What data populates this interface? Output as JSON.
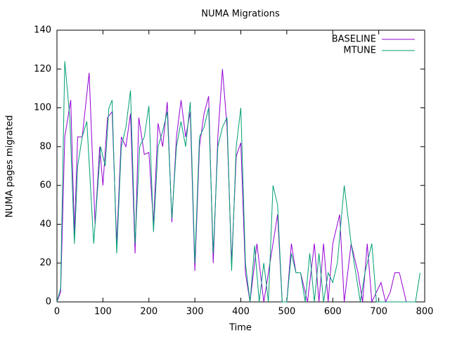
{
  "chart_data": {
    "type": "line",
    "title": "NUMA Migrations",
    "xlabel": "Time",
    "ylabel": "NUMA pages migrated",
    "xlim": [
      0,
      800
    ],
    "xticks": [
      0,
      100,
      200,
      300,
      400,
      500,
      600,
      700,
      800
    ],
    "ylim": [
      0,
      140
    ],
    "yticks": [
      0,
      20,
      40,
      60,
      80,
      100,
      120,
      140
    ],
    "legend": "upper right",
    "series": [
      {
        "name": "BASELINE",
        "color": "#9400d3",
        "x": [
          0,
          8,
          17,
          30,
          38,
          45,
          55,
          70,
          83,
          93,
          100,
          110,
          120,
          130,
          140,
          150,
          160,
          170,
          178,
          190,
          200,
          210,
          220,
          230,
          240,
          250,
          260,
          270,
          280,
          290,
          300,
          310,
          320,
          330,
          340,
          350,
          360,
          370,
          380,
          390,
          400,
          410,
          420,
          435,
          450,
          470,
          480,
          490,
          500,
          510,
          520,
          530,
          545,
          560,
          570,
          580,
          590,
          600,
          615,
          625,
          640,
          655,
          665,
          675,
          685,
          695,
          705,
          715,
          725,
          735,
          745,
          760,
          775
        ],
        "values": [
          0,
          5,
          85,
          104,
          35,
          85,
          85,
          118,
          40,
          80,
          60,
          95,
          98,
          30,
          85,
          80,
          97,
          25,
          95,
          76,
          77,
          40,
          92,
          80,
          103,
          41,
          85,
          104,
          85,
          98,
          16,
          80,
          97,
          106,
          20,
          85,
          120,
          90,
          20,
          75,
          82,
          15,
          0,
          30,
          0,
          30,
          45,
          0,
          0,
          30,
          15,
          15,
          0,
          30,
          0,
          30,
          0,
          30,
          45,
          0,
          30,
          15,
          0,
          30,
          0,
          5,
          10,
          0,
          5,
          15,
          15,
          0,
          0
        ]
      },
      {
        "name": "MTUNE",
        "color": "#009e73",
        "x": [
          0,
          8,
          17,
          28,
          38,
          45,
          55,
          65,
          80,
          95,
          105,
          113,
          120,
          130,
          140,
          150,
          160,
          170,
          180,
          190,
          200,
          210,
          220,
          230,
          240,
          250,
          260,
          270,
          280,
          290,
          300,
          310,
          320,
          330,
          340,
          350,
          360,
          370,
          380,
          390,
          400,
          410,
          420,
          430,
          440,
          450,
          460,
          470,
          480,
          490,
          500,
          510,
          520,
          530,
          540,
          550,
          560,
          570,
          580,
          590,
          600,
          610,
          625,
          640,
          660,
          670,
          685,
          695,
          780,
          790
        ],
        "values": [
          0,
          7,
          124,
          95,
          30,
          70,
          85,
          93,
          30,
          80,
          70,
          100,
          104,
          25,
          80,
          90,
          109,
          30,
          80,
          85,
          101,
          36,
          80,
          88,
          98,
          43,
          80,
          93,
          80,
          103,
          20,
          85,
          90,
          100,
          25,
          80,
          90,
          95,
          16,
          80,
          100,
          20,
          0,
          29,
          0,
          20,
          0,
          60,
          50,
          0,
          0,
          25,
          15,
          15,
          0,
          25,
          0,
          25,
          0,
          15,
          10,
          20,
          60,
          30,
          0,
          15,
          30,
          0,
          0,
          15
        ]
      }
    ]
  }
}
